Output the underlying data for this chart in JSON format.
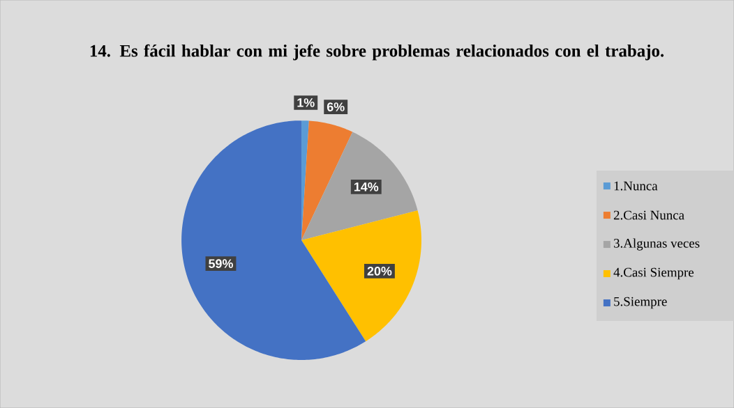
{
  "chart_data": {
    "type": "pie",
    "title": "14. Es fácil hablar con mi jefe sobre problemas relacionados con el trabajo.",
    "categories": [
      "1.Nunca",
      "2.Casi Nunca",
      "3.Algunas veces",
      "4.Casi Siempre",
      "5.Siempre"
    ],
    "values": [
      1,
      6,
      14,
      20,
      59
    ],
    "value_labels": [
      "1%",
      "6%",
      "14%",
      "20%",
      "59%"
    ],
    "colors": [
      "#5b9bd5",
      "#ed7d31",
      "#a5a5a5",
      "#ffc000",
      "#4472c4"
    ],
    "legend": "right"
  }
}
